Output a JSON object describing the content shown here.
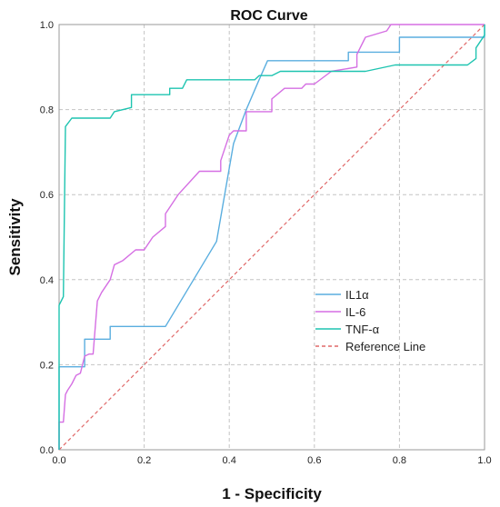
{
  "chart_data": {
    "type": "line",
    "title": "ROC Curve",
    "xlabel": "1 - Specificity",
    "ylabel": "Sensitivity",
    "xlim": [
      0,
      1
    ],
    "ylim": [
      0,
      1
    ],
    "x_ticks": [
      "0.0",
      "0.2",
      "0.4",
      "0.6",
      "0.8",
      "1.0"
    ],
    "y_ticks": [
      "0.0",
      "0.2",
      "0.4",
      "0.6",
      "0.8",
      "1.0"
    ],
    "grid": true,
    "legend_position": "bottom-right",
    "series": [
      {
        "name": "IL1α",
        "color": "#5aaedf",
        "dash": "solid",
        "points": [
          [
            0,
            0
          ],
          [
            0,
            0.195
          ],
          [
            0.06,
            0.195
          ],
          [
            0.06,
            0.26
          ],
          [
            0.12,
            0.26
          ],
          [
            0.12,
            0.29
          ],
          [
            0.25,
            0.29
          ],
          [
            0.37,
            0.49
          ],
          [
            0.41,
            0.72
          ],
          [
            0.44,
            0.8
          ],
          [
            0.47,
            0.87
          ],
          [
            0.49,
            0.915
          ],
          [
            0.68,
            0.915
          ],
          [
            0.68,
            0.935
          ],
          [
            0.8,
            0.935
          ],
          [
            0.8,
            0.97
          ],
          [
            1.0,
            0.97
          ],
          [
            1.0,
            1.0
          ]
        ]
      },
      {
        "name": "IL-6",
        "color": "#d56fe3",
        "dash": "solid",
        "points": [
          [
            0,
            0
          ],
          [
            0,
            0.065
          ],
          [
            0.01,
            0.065
          ],
          [
            0.015,
            0.13
          ],
          [
            0.02,
            0.14
          ],
          [
            0.03,
            0.155
          ],
          [
            0.04,
            0.175
          ],
          [
            0.05,
            0.18
          ],
          [
            0.06,
            0.22
          ],
          [
            0.07,
            0.225
          ],
          [
            0.08,
            0.225
          ],
          [
            0.09,
            0.35
          ],
          [
            0.1,
            0.37
          ],
          [
            0.12,
            0.4
          ],
          [
            0.13,
            0.435
          ],
          [
            0.15,
            0.445
          ],
          [
            0.18,
            0.47
          ],
          [
            0.2,
            0.47
          ],
          [
            0.22,
            0.5
          ],
          [
            0.25,
            0.525
          ],
          [
            0.25,
            0.555
          ],
          [
            0.28,
            0.6
          ],
          [
            0.33,
            0.655
          ],
          [
            0.35,
            0.655
          ],
          [
            0.38,
            0.655
          ],
          [
            0.38,
            0.68
          ],
          [
            0.4,
            0.74
          ],
          [
            0.41,
            0.75
          ],
          [
            0.44,
            0.75
          ],
          [
            0.44,
            0.795
          ],
          [
            0.5,
            0.795
          ],
          [
            0.5,
            0.825
          ],
          [
            0.53,
            0.85
          ],
          [
            0.57,
            0.85
          ],
          [
            0.58,
            0.86
          ],
          [
            0.6,
            0.86
          ],
          [
            0.64,
            0.89
          ],
          [
            0.7,
            0.9
          ],
          [
            0.7,
            0.93
          ],
          [
            0.72,
            0.97
          ],
          [
            0.77,
            0.985
          ],
          [
            0.78,
            1.0
          ],
          [
            1.0,
            1.0
          ]
        ]
      },
      {
        "name": "TNF-α",
        "color": "#1ec4b0",
        "dash": "solid",
        "points": [
          [
            0,
            0
          ],
          [
            0,
            0.34
          ],
          [
            0.01,
            0.36
          ],
          [
            0.015,
            0.76
          ],
          [
            0.03,
            0.78
          ],
          [
            0.12,
            0.78
          ],
          [
            0.13,
            0.795
          ],
          [
            0.17,
            0.805
          ],
          [
            0.17,
            0.835
          ],
          [
            0.26,
            0.835
          ],
          [
            0.26,
            0.85
          ],
          [
            0.29,
            0.85
          ],
          [
            0.3,
            0.87
          ],
          [
            0.46,
            0.87
          ],
          [
            0.47,
            0.88
          ],
          [
            0.5,
            0.88
          ],
          [
            0.52,
            0.89
          ],
          [
            0.72,
            0.89
          ],
          [
            0.79,
            0.905
          ],
          [
            0.96,
            0.905
          ],
          [
            0.98,
            0.92
          ],
          [
            0.98,
            0.945
          ],
          [
            0.99,
            0.96
          ],
          [
            1.0,
            0.975
          ],
          [
            1.0,
            1.0
          ]
        ]
      },
      {
        "name": "Reference Line",
        "color": "#e06868",
        "dash": "dashed",
        "points": [
          [
            0,
            0
          ],
          [
            1,
            1
          ]
        ]
      }
    ]
  }
}
